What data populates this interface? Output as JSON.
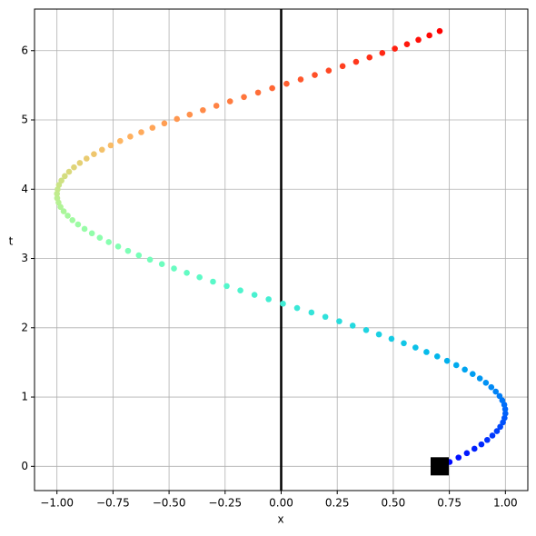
{
  "chart_data": {
    "type": "scatter",
    "xlabel": "x",
    "ylabel": "t",
    "colormap": "rainbow",
    "grid": true,
    "x": [
      0.707,
      0.751,
      0.791,
      0.828,
      0.862,
      0.893,
      0.919,
      0.942,
      0.962,
      0.977,
      0.989,
      0.996,
      1.0,
      0.999,
      0.995,
      0.986,
      0.974,
      0.957,
      0.937,
      0.913,
      0.886,
      0.854,
      0.819,
      0.781,
      0.74,
      0.696,
      0.648,
      0.599,
      0.547,
      0.492,
      0.436,
      0.379,
      0.319,
      0.259,
      0.197,
      0.135,
      0.071,
      0.008,
      -0.056,
      -0.119,
      -0.182,
      -0.243,
      -0.304,
      -0.364,
      -0.421,
      -0.478,
      -0.532,
      -0.585,
      -0.635,
      -0.683,
      -0.727,
      -0.769,
      -0.809,
      -0.844,
      -0.877,
      -0.906,
      -0.931,
      -0.952,
      -0.97,
      -0.984,
      -0.993,
      -0.999,
      -1.0,
      -0.997,
      -0.991,
      -0.98,
      -0.965,
      -0.946,
      -0.924,
      -0.898,
      -0.868,
      -0.835,
      -0.799,
      -0.76,
      -0.718,
      -0.673,
      -0.624,
      -0.574,
      -0.521,
      -0.465,
      -0.408,
      -0.349,
      -0.289,
      -0.228,
      -0.166,
      -0.103,
      -0.04,
      0.024,
      0.087,
      0.15,
      0.212,
      0.274,
      0.334,
      0.394,
      0.451,
      0.507,
      0.561,
      0.612,
      0.661,
      0.707
    ],
    "values": [
      0,
      0.063,
      0.127,
      0.19,
      0.254,
      0.317,
      0.381,
      0.444,
      0.508,
      0.571,
      0.635,
      0.698,
      0.762,
      0.825,
      0.889,
      0.952,
      1.015,
      1.079,
      1.142,
      1.206,
      1.269,
      1.333,
      1.396,
      1.46,
      1.523,
      1.587,
      1.65,
      1.714,
      1.777,
      1.841,
      1.904,
      1.967,
      2.031,
      2.094,
      2.158,
      2.221,
      2.285,
      2.348,
      2.412,
      2.475,
      2.539,
      2.602,
      2.666,
      2.729,
      2.793,
      2.856,
      2.919,
      2.983,
      3.046,
      3.11,
      3.173,
      3.237,
      3.3,
      3.364,
      3.427,
      3.491,
      3.554,
      3.618,
      3.681,
      3.744,
      3.808,
      3.871,
      3.935,
      3.998,
      4.062,
      4.125,
      4.189,
      4.252,
      4.316,
      4.379,
      4.443,
      4.506,
      4.57,
      4.633,
      4.696,
      4.76,
      4.823,
      4.887,
      4.95,
      5.014,
      5.077,
      5.141,
      5.204,
      5.268,
      5.331,
      5.395,
      5.458,
      5.522,
      5.585,
      5.649,
      5.712,
      5.776,
      5.839,
      5.902,
      5.966,
      6.029,
      6.093,
      6.156,
      6.22,
      6.283
    ],
    "vline": 0,
    "vline_color": "#000000",
    "marker": {
      "x": 0.707,
      "y": 0,
      "color": "#000000"
    },
    "xlim": [
      -1.1,
      1.1
    ],
    "xticks": [
      {
        "value": -1,
        "label": "−1.00"
      },
      {
        "value": -0.75,
        "label": "−0.75"
      },
      {
        "value": -0.5,
        "label": "−0.50"
      },
      {
        "value": -0.25,
        "label": "−0.25"
      },
      {
        "value": 0,
        "label": "0.00"
      },
      {
        "value": 0.25,
        "label": "0.25"
      },
      {
        "value": 0.5,
        "label": "0.50"
      },
      {
        "value": 0.75,
        "label": "0.75"
      },
      {
        "value": 1,
        "label": "1.00"
      }
    ],
    "ylim": [
      -0.35,
      6.6
    ],
    "yticks": [
      0,
      1,
      2,
      3,
      4,
      5,
      6
    ]
  }
}
